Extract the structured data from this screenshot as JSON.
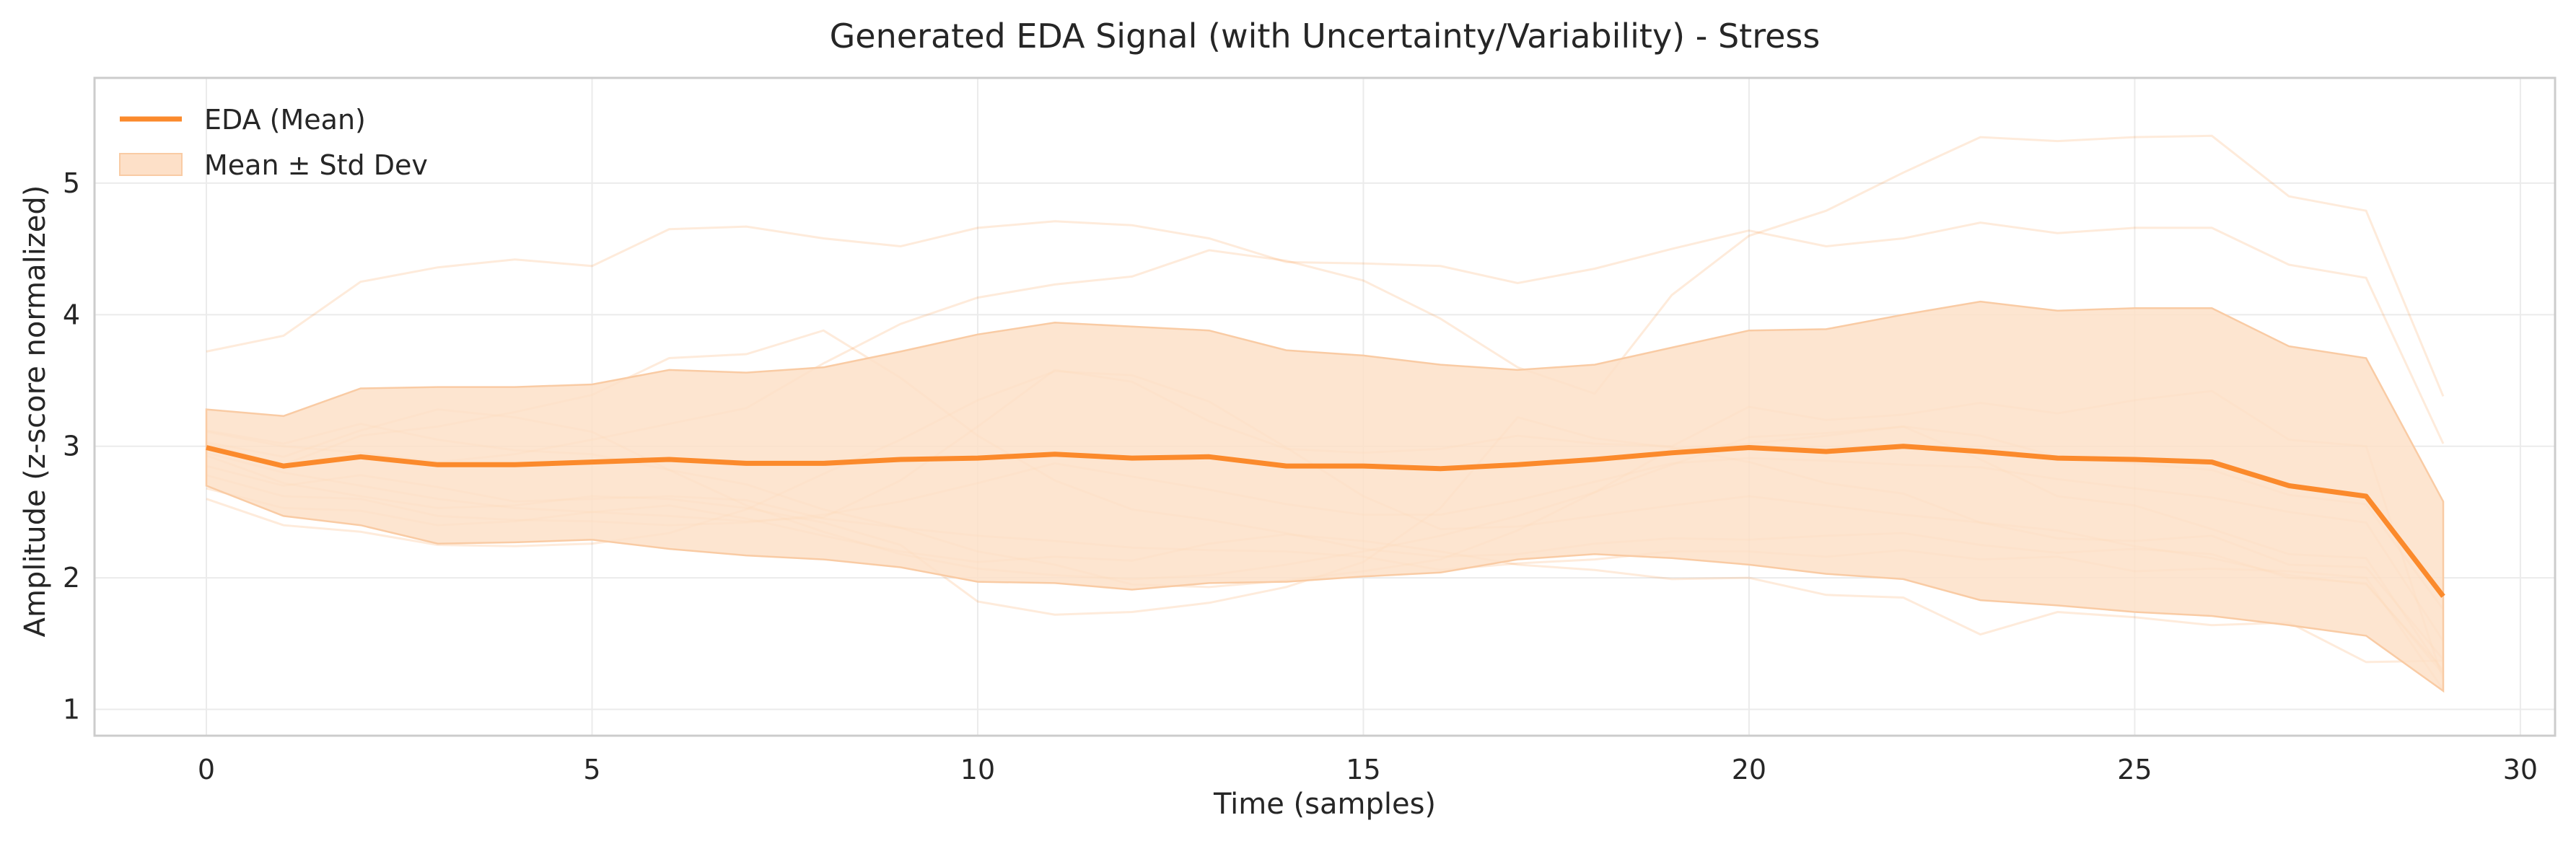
{
  "chart_data": {
    "type": "line",
    "title": "Generated EDA Signal (with Uncertainty/Variability) - Stress",
    "xlabel": "Time (samples)",
    "ylabel": "Amplitude (z-score normalized)",
    "xlim": [
      -1.45,
      30.45
    ],
    "ylim": [
      0.8,
      5.8
    ],
    "xticks": [
      0,
      5,
      10,
      15,
      20,
      25,
      30
    ],
    "yticks": [
      1,
      2,
      3,
      4,
      5
    ],
    "grid": true,
    "legend": {
      "location": "top-left",
      "entries": [
        "EDA (Mean)",
        "Mean ± Std Dev"
      ]
    },
    "colors": {
      "mean": "#fb8a2c",
      "band_fill": "#fde0c8",
      "band_edge": "#f9cba4",
      "samples": "#fb8a2c"
    },
    "x": [
      0,
      1,
      2,
      3,
      4,
      5,
      6,
      7,
      8,
      9,
      10,
      11,
      12,
      13,
      14,
      15,
      16,
      17,
      18,
      19,
      20,
      21,
      22,
      23,
      24,
      25,
      26,
      27,
      28,
      29
    ],
    "series": [
      {
        "name": "EDA (Mean)",
        "values": [
          2.99,
          2.85,
          2.92,
          2.86,
          2.86,
          2.88,
          2.9,
          2.87,
          2.87,
          2.9,
          2.91,
          2.94,
          2.91,
          2.92,
          2.85,
          2.85,
          2.83,
          2.86,
          2.9,
          2.95,
          2.99,
          2.96,
          3.0,
          2.96,
          2.91,
          2.9,
          2.88,
          2.7,
          2.62,
          1.86
        ]
      },
      {
        "name": "Mean ± Std Dev",
        "upper": [
          3.28,
          3.23,
          3.44,
          3.45,
          3.45,
          3.47,
          3.58,
          3.56,
          3.6,
          3.72,
          3.85,
          3.94,
          3.91,
          3.88,
          3.73,
          3.69,
          3.62,
          3.58,
          3.62,
          3.75,
          3.88,
          3.89,
          4.0,
          4.1,
          4.03,
          4.05,
          4.05,
          3.76,
          3.67,
          2.58
        ],
        "lower": [
          2.7,
          2.47,
          2.4,
          2.26,
          2.27,
          2.29,
          2.22,
          2.17,
          2.14,
          2.08,
          1.97,
          1.96,
          1.91,
          1.96,
          1.97,
          2.01,
          2.04,
          2.14,
          2.18,
          2.15,
          2.1,
          2.03,
          1.99,
          1.83,
          1.79,
          1.74,
          1.71,
          1.64,
          1.56,
          1.14
        ]
      }
    ],
    "samples": [
      [
        3.72,
        3.84,
        4.25,
        4.36,
        4.42,
        4.37,
        4.65,
        4.67,
        4.58,
        4.52,
        4.66,
        4.71,
        4.68,
        4.58,
        4.4,
        4.39,
        4.37,
        4.24,
        4.35,
        4.5,
        4.64,
        4.52,
        4.58,
        4.7,
        4.62,
        4.66,
        4.66,
        4.38,
        4.28,
        3.02
      ],
      [
        3.11,
        3.0,
        2.95,
        2.88,
        2.94,
        3.05,
        3.17,
        3.29,
        3.63,
        3.93,
        4.13,
        4.23,
        4.29,
        4.49,
        4.41,
        4.26,
        3.97,
        3.6,
        3.4,
        4.15,
        4.6,
        4.79,
        5.08,
        5.35,
        5.32,
        5.35,
        5.36,
        4.9,
        4.79,
        3.38
      ],
      [
        2.95,
        2.8,
        2.7,
        2.6,
        2.53,
        2.5,
        2.47,
        2.43,
        2.46,
        2.74,
        3.15,
        3.58,
        3.49,
        3.19,
        2.98,
        2.95,
        2.98,
        3.08,
        3.02,
        3.0,
        3.3,
        3.2,
        3.24,
        3.33,
        3.25,
        3.35,
        3.42,
        3.05,
        3.0,
        1.22
      ],
      [
        2.6,
        2.4,
        2.35,
        2.25,
        2.24,
        2.26,
        2.34,
        2.52,
        2.79,
        3.05,
        3.35,
        3.57,
        3.54,
        3.34,
        2.99,
        2.62,
        2.37,
        2.39,
        2.47,
        2.55,
        2.62,
        2.55,
        2.48,
        2.42,
        2.3,
        2.28,
        2.32,
        2.1,
        2.08,
        1.38
      ],
      [
        2.85,
        2.7,
        2.78,
        2.69,
        2.58,
        2.6,
        2.62,
        2.59,
        2.45,
        2.38,
        2.32,
        2.28,
        2.23,
        2.21,
        2.2,
        2.16,
        2.06,
        2.11,
        2.14,
        2.2,
        2.2,
        2.16,
        2.21,
        2.14,
        2.16,
        2.05,
        2.07,
        2.05,
        2.0,
        1.15
      ],
      [
        3.12,
        3.02,
        3.17,
        3.05,
        2.97,
        2.94,
        2.82,
        2.71,
        2.52,
        2.38,
        2.2,
        2.1,
        1.95,
        1.93,
        1.98,
        2.05,
        2.14,
        2.36,
        2.65,
        2.98,
        3.02,
        3.08,
        3.15,
        3.08,
        2.92,
        2.87,
        2.82,
        2.63,
        2.56,
        1.76
      ],
      [
        2.78,
        2.62,
        2.6,
        2.47,
        2.44,
        2.43,
        2.4,
        2.42,
        2.48,
        2.58,
        2.72,
        2.87,
        2.77,
        2.67,
        2.56,
        2.48,
        2.48,
        2.59,
        2.73,
        2.87,
        2.91,
        2.89,
        2.86,
        2.84,
        2.75,
        2.68,
        2.61,
        2.5,
        2.42,
        1.52
      ],
      [
        3.03,
        2.92,
        3.12,
        3.28,
        3.22,
        3.11,
        2.82,
        2.55,
        2.35,
        2.18,
        2.07,
        2.02,
        1.99,
        2.02,
        2.1,
        2.2,
        2.32,
        2.47,
        2.65,
        2.86,
        3.07,
        3.1,
        3.15,
        2.9,
        2.62,
        2.55,
        2.37,
        2.18,
        2.15,
        1.28
      ],
      [
        2.68,
        2.53,
        2.51,
        2.4,
        2.43,
        2.5,
        2.55,
        2.45,
        2.32,
        2.2,
        2.12,
        2.16,
        2.13,
        2.26,
        2.33,
        2.28,
        2.2,
        2.1,
        2.06,
        1.99,
        2.0,
        1.87,
        1.85,
        1.57,
        1.74,
        1.7,
        1.64,
        1.66,
        1.36,
        1.37
      ],
      [
        3.02,
        2.86,
        3.08,
        3.15,
        3.26,
        3.39,
        3.67,
        3.7,
        3.88,
        3.52,
        3.08,
        2.74,
        2.52,
        2.44,
        2.34,
        2.22,
        2.16,
        2.18,
        2.26,
        2.3,
        2.29,
        2.32,
        2.34,
        2.25,
        2.19,
        2.22,
        2.18,
        2.0,
        1.96,
        1.27
      ],
      [
        2.93,
        2.72,
        2.62,
        2.53,
        2.55,
        2.62,
        2.6,
        2.53,
        2.42,
        2.25,
        1.82,
        1.72,
        1.74,
        1.81,
        1.93,
        2.12,
        2.53,
        3.22,
        3.06,
        2.99,
        2.88,
        2.72,
        2.64,
        2.42,
        2.36,
        2.24,
        2.15,
        2.02,
        1.95,
        1.3
      ]
    ]
  }
}
